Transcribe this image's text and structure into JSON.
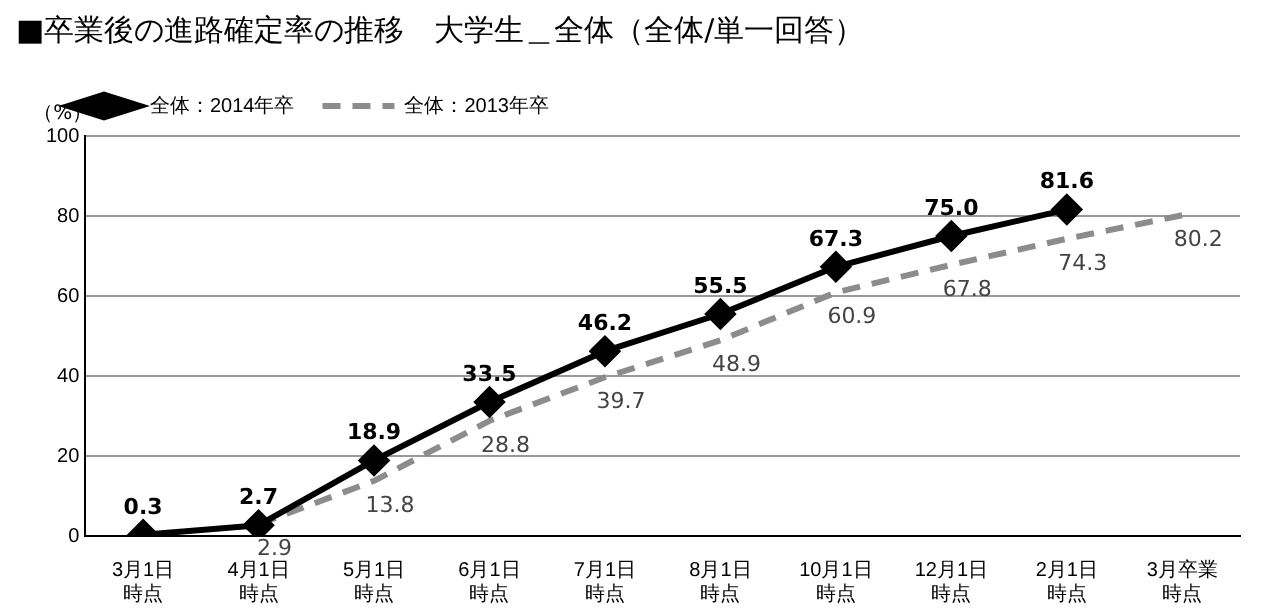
{
  "chart_data": {
    "type": "line",
    "title": "■卒業後の進路確定率の推移　大学生＿全体（全体/単一回答）",
    "ylabel": "（%）",
    "categories": [
      "3月1日時点",
      "4月1日時点",
      "5月1日時点",
      "6月1日時点",
      "7月1日時点",
      "8月1日時点",
      "10月1日時点",
      "12月1日時点",
      "2月1日時点",
      "3月卒業時点"
    ],
    "series": [
      {
        "name": "全体：2014年卒",
        "color": "#000000",
        "marker": "diamond",
        "line_style": "solid",
        "values": [
          0.3,
          2.7,
          18.9,
          33.5,
          46.2,
          55.5,
          67.3,
          75.0,
          81.6,
          null
        ],
        "value_labels": [
          "0.3",
          "2.7",
          "18.9",
          "33.5",
          "46.2",
          "55.5",
          "67.3",
          "75.0",
          "81.6",
          null
        ]
      },
      {
        "name": "全体：2013年卒",
        "color": "#8c8c8c",
        "marker": "none",
        "line_style": "dashed",
        "values": [
          null,
          2.9,
          13.8,
          28.8,
          39.7,
          48.9,
          60.9,
          67.8,
          74.3,
          80.2
        ],
        "value_labels": [
          null,
          "2.9",
          "13.8",
          "28.8",
          "39.7",
          "48.9",
          "60.9",
          "67.8",
          "74.3",
          "80.2"
        ]
      }
    ],
    "ylim": [
      0,
      100
    ],
    "yticks": [
      0,
      20,
      40,
      60,
      80,
      100
    ],
    "grid": "y",
    "legend": "top left"
  }
}
